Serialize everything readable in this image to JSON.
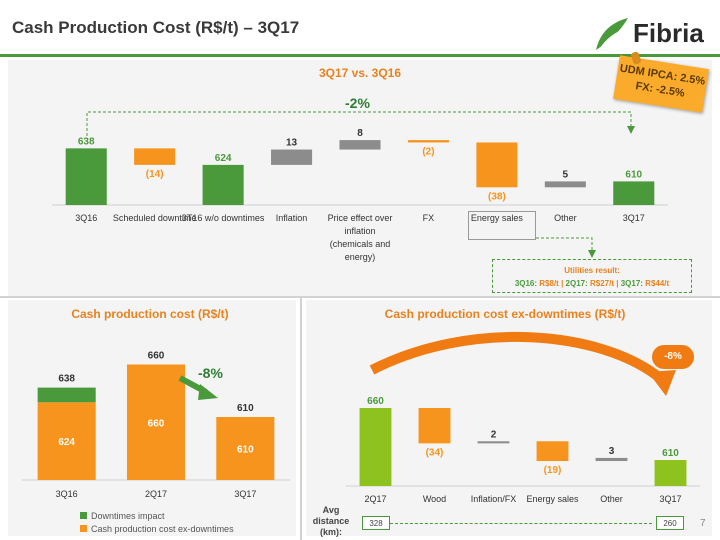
{
  "header": {
    "title": "Cash Production Cost (R$/t) – 3Q17",
    "logo_text": "Fibria"
  },
  "sticky_note": {
    "line1": "UDM IPCA: 2.5%",
    "line2": "FX:  -2.5%"
  },
  "top_section": {
    "title": "3Q17 vs. 3Q16",
    "change": "-2%"
  },
  "utilities": {
    "label": "Utilities result:",
    "parts": [
      "3Q16:",
      "R$8/t",
      "2Q17:",
      "R$27/t",
      "3Q17:",
      "R$44/t"
    ]
  },
  "bottom_left": {
    "title": "Cash production cost (R$/t)",
    "change": "-8%",
    "legend": [
      "Downtimes impact",
      "Cash production cost ex-downtimes"
    ]
  },
  "bottom_right": {
    "title": "Cash production cost ex-downtimes (R$/t)",
    "change": "-8%",
    "avg_distance_label": [
      "Avg",
      "distance",
      "(km):"
    ],
    "distance_start": "328",
    "distance_end": "260"
  },
  "page_number": "7",
  "colors": {
    "green": "#4a9a3c",
    "lime": "#8dc21f",
    "orange": "#f7941d",
    "gray": "#8c8c8c"
  },
  "chart_data": [
    {
      "type": "bar",
      "subtype": "waterfall",
      "categories": [
        "3Q16",
        "Scheduled downtime",
        "3T16 w/o downtimes",
        "Inflation",
        "Price effect over inflation (chemicals and energy)",
        "FX",
        "Energy sales",
        "Other",
        "3Q17"
      ],
      "values": [
        638,
        -14,
        624,
        13,
        8,
        -2,
        -38,
        5,
        610
      ],
      "labels": [
        "638",
        "(14)",
        "624",
        "13",
        "8",
        "(2)",
        "(38)",
        "5",
        "610"
      ],
      "kinds": [
        "total",
        "delta",
        "total",
        "delta",
        "delta",
        "delta",
        "delta",
        "delta",
        "total"
      ]
    },
    {
      "type": "bar",
      "subtype": "stacked",
      "categories": [
        "3Q16",
        "2Q17",
        "3Q17"
      ],
      "totals": [
        638,
        660,
        610
      ],
      "series": [
        {
          "name": "Cash production cost ex-downtimes",
          "values": [
            624,
            660,
            610
          ]
        },
        {
          "name": "Downtimes impact",
          "values": [
            14,
            0,
            0
          ]
        }
      ]
    },
    {
      "type": "bar",
      "subtype": "waterfall",
      "categories": [
        "2Q17",
        "Wood",
        "Inflation/FX",
        "Energy sales",
        "Other",
        "3Q17"
      ],
      "values": [
        660,
        -34,
        2,
        -19,
        3,
        610
      ],
      "labels": [
        "660",
        "(34)",
        "2",
        "(19)",
        "3",
        "610"
      ],
      "kinds": [
        "total",
        "delta",
        "delta",
        "delta",
        "delta",
        "total"
      ]
    }
  ]
}
